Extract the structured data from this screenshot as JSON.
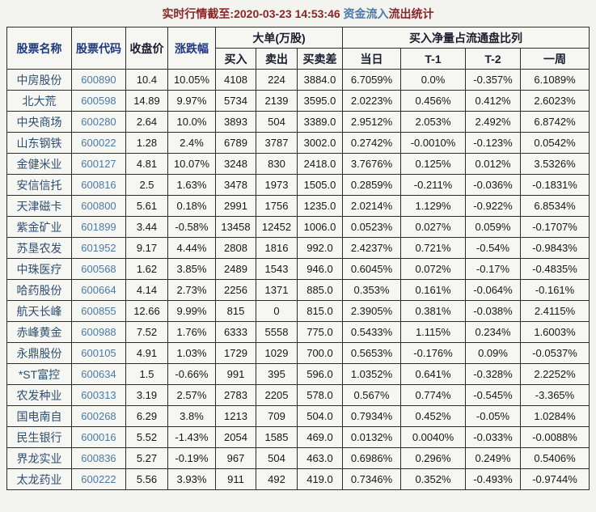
{
  "title": {
    "prefix": "实时行情截至:2020-03-23 14:53:46 ",
    "highlight": "资金流入",
    "suffix": "流出统计"
  },
  "colors": {
    "page_bg": "#f3f3f0",
    "cell_bg": "#f6f6f3",
    "border": "#2d2d2d",
    "title_red": "#8b2626",
    "link_blue": "#4a7ba6",
    "header_navy": "#1e3a7d",
    "header_dark": "#1c1c2e",
    "name_blue": "#2f4f6f",
    "text_black": "#161616"
  },
  "table": {
    "group_headers": {
      "stock_name": "股票名称",
      "stock_code": "股票代码",
      "close_price": "收盘价",
      "change_pct": "涨跌幅",
      "big_orders": "大单(万股)",
      "net_buy_ratio": "买入净量占流通盘比列"
    },
    "sub_headers": {
      "buy": "买入",
      "sell": "卖出",
      "diff": "买卖差",
      "today": "当日",
      "t1": "T-1",
      "t2": "T-2",
      "week": "一周"
    },
    "rows": [
      [
        "中房股份",
        "600890",
        "10.4",
        "10.05%",
        "4108",
        "224",
        "3884.0",
        "6.7059%",
        "0.0%",
        "-0.357%",
        "6.1089%"
      ],
      [
        "北大荒",
        "600598",
        "14.89",
        "9.97%",
        "5734",
        "2139",
        "3595.0",
        "2.0223%",
        "0.456%",
        "0.412%",
        "2.6023%"
      ],
      [
        "中央商场",
        "600280",
        "2.64",
        "10.0%",
        "3893",
        "504",
        "3389.0",
        "2.9512%",
        "2.053%",
        "2.492%",
        "6.8742%"
      ],
      [
        "山东钢铁",
        "600022",
        "1.28",
        "2.4%",
        "6789",
        "3787",
        "3002.0",
        "0.2742%",
        "-0.0010%",
        "-0.123%",
        "0.0542%"
      ],
      [
        "金健米业",
        "600127",
        "4.81",
        "10.07%",
        "3248",
        "830",
        "2418.0",
        "3.7676%",
        "0.125%",
        "0.012%",
        "3.5326%"
      ],
      [
        "安信信托",
        "600816",
        "2.5",
        "1.63%",
        "3478",
        "1973",
        "1505.0",
        "0.2859%",
        "-0.211%",
        "-0.036%",
        "-0.1831%"
      ],
      [
        "天津磁卡",
        "600800",
        "5.61",
        "0.18%",
        "2991",
        "1756",
        "1235.0",
        "2.0214%",
        "1.129%",
        "-0.922%",
        "6.8534%"
      ],
      [
        "紫金矿业",
        "601899",
        "3.44",
        "-0.58%",
        "13458",
        "12452",
        "1006.0",
        "0.0523%",
        "0.027%",
        "0.059%",
        "-0.1707%"
      ],
      [
        "苏垦农发",
        "601952",
        "9.17",
        "4.44%",
        "2808",
        "1816",
        "992.0",
        "2.4237%",
        "0.721%",
        "-0.54%",
        "-0.9843%"
      ],
      [
        "中珠医疗",
        "600568",
        "1.62",
        "3.85%",
        "2489",
        "1543",
        "946.0",
        "0.6045%",
        "0.072%",
        "-0.17%",
        "-0.4835%"
      ],
      [
        "哈药股份",
        "600664",
        "4.14",
        "2.73%",
        "2256",
        "1371",
        "885.0",
        "0.353%",
        "0.161%",
        "-0.064%",
        "-0.161%"
      ],
      [
        "航天长峰",
        "600855",
        "12.66",
        "9.99%",
        "815",
        "0",
        "815.0",
        "2.3905%",
        "0.381%",
        "-0.038%",
        "2.4115%"
      ],
      [
        "赤峰黄金",
        "600988",
        "7.52",
        "1.76%",
        "6333",
        "5558",
        "775.0",
        "0.5433%",
        "1.115%",
        "0.234%",
        "1.6003%"
      ],
      [
        "永鼎股份",
        "600105",
        "4.91",
        "1.03%",
        "1729",
        "1029",
        "700.0",
        "0.5653%",
        "-0.176%",
        "0.09%",
        "-0.0537%"
      ],
      [
        "*ST富控",
        "600634",
        "1.5",
        "-0.66%",
        "991",
        "395",
        "596.0",
        "1.0352%",
        "0.641%",
        "-0.328%",
        "2.2252%"
      ],
      [
        "农发种业",
        "600313",
        "3.19",
        "2.57%",
        "2783",
        "2205",
        "578.0",
        "0.567%",
        "0.774%",
        "-0.545%",
        "-3.365%"
      ],
      [
        "国电南自",
        "600268",
        "6.29",
        "3.8%",
        "1213",
        "709",
        "504.0",
        "0.7934%",
        "0.452%",
        "-0.05%",
        "1.0284%"
      ],
      [
        "民生银行",
        "600016",
        "5.52",
        "-1.43%",
        "2054",
        "1585",
        "469.0",
        "0.0132%",
        "0.0040%",
        "-0.033%",
        "-0.0088%"
      ],
      [
        "界龙实业",
        "600836",
        "5.27",
        "-0.19%",
        "967",
        "504",
        "463.0",
        "0.6986%",
        "0.296%",
        "0.249%",
        "0.5406%"
      ],
      [
        "太龙药业",
        "600222",
        "5.56",
        "3.93%",
        "911",
        "492",
        "419.0",
        "0.7346%",
        "0.352%",
        "-0.493%",
        "-0.9744%"
      ]
    ],
    "cell_names": [
      "stock-name-cell",
      "stock-code-cell",
      "close-price-cell",
      "change-pct-cell",
      "buy-volume-cell",
      "sell-volume-cell",
      "buy-sell-diff-cell",
      "today-ratio-cell",
      "t1-ratio-cell",
      "t2-ratio-cell",
      "week-ratio-cell"
    ]
  }
}
